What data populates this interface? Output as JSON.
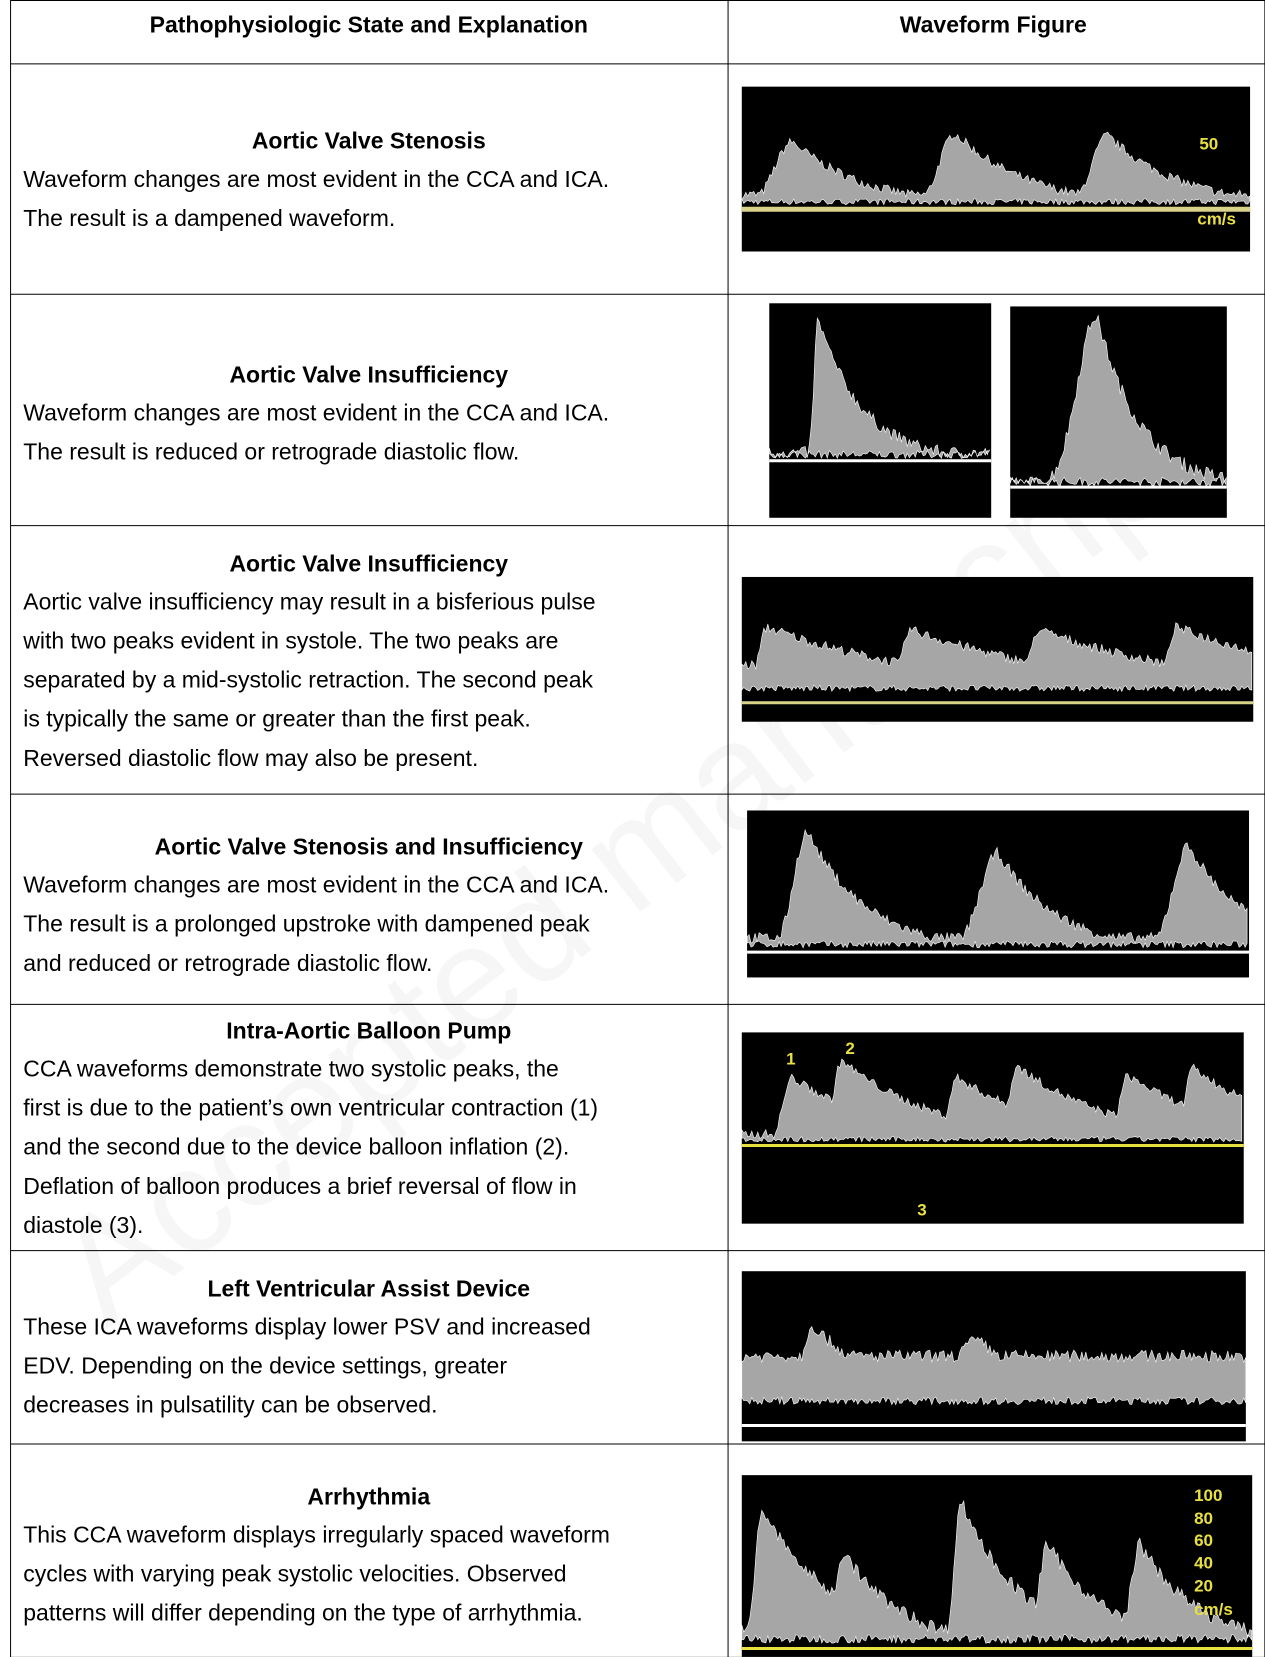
{
  "header": [
    "Pathophysiologic State and Explanation",
    "Waveform Figure"
  ],
  "rows": [
    {
      "title": "Aortic Valve Stenosis",
      "lines": [
        "Waveform changes are most evident in the CCA and ICA.",
        "The result is a dampened waveform."
      ],
      "figure_labels": [
        "50",
        "cm/s"
      ]
    },
    {
      "title": "Aortic Valve Insufficiency",
      "lines": [
        "Waveform changes are most evident in the CCA and ICA.",
        "The result is reduced or retrograde diastolic flow."
      ]
    },
    {
      "title": "Aortic Valve Insufficiency",
      "lines": [
        "Aortic valve insufficiency may result in a bisferious pulse",
        "with two peaks evident in systole. The two peaks are",
        "separated by a mid-systolic retraction.  The second peak",
        "is typically the same or greater than the first peak.",
        "Reversed diastolic flow may also be present."
      ]
    },
    {
      "title": "Aortic Valve Stenosis and Insufficiency",
      "lines": [
        "Waveform changes are most evident in the CCA and ICA.",
        "The result is a prolonged upstroke with dampened peak",
        "and reduced or retrograde diastolic flow."
      ]
    },
    {
      "title": "Intra-Aortic Balloon Pump",
      "lines": [
        "CCA waveforms demonstrate two systolic peaks, the",
        "first is due to the patient’s own ventricular contraction (1)",
        "and the second due to the device balloon inflation (2).",
        "Deflation of balloon produces a brief reversal of flow in",
        "diastole (3)."
      ],
      "figure_labels": [
        "1",
        "2",
        "3"
      ]
    },
    {
      "title": "Left Ventricular Assist Device",
      "lines": [
        "These ICA waveforms display lower PSV and increased",
        "EDV.  Depending on the device settings, greater",
        "decreases in pulsatility can be observed."
      ]
    },
    {
      "title": "Arrhythmia",
      "lines": [
        "This CCA waveform displays irregularly spaced waveform",
        "cycles with varying peak systolic velocities.  Observed",
        "patterns will differ depending on the type of arrhythmia."
      ],
      "figure_labels": [
        "100",
        "80",
        "60",
        "40",
        "20",
        "cm/s"
      ]
    }
  ],
  "watermark": "Accepted manuscript"
}
